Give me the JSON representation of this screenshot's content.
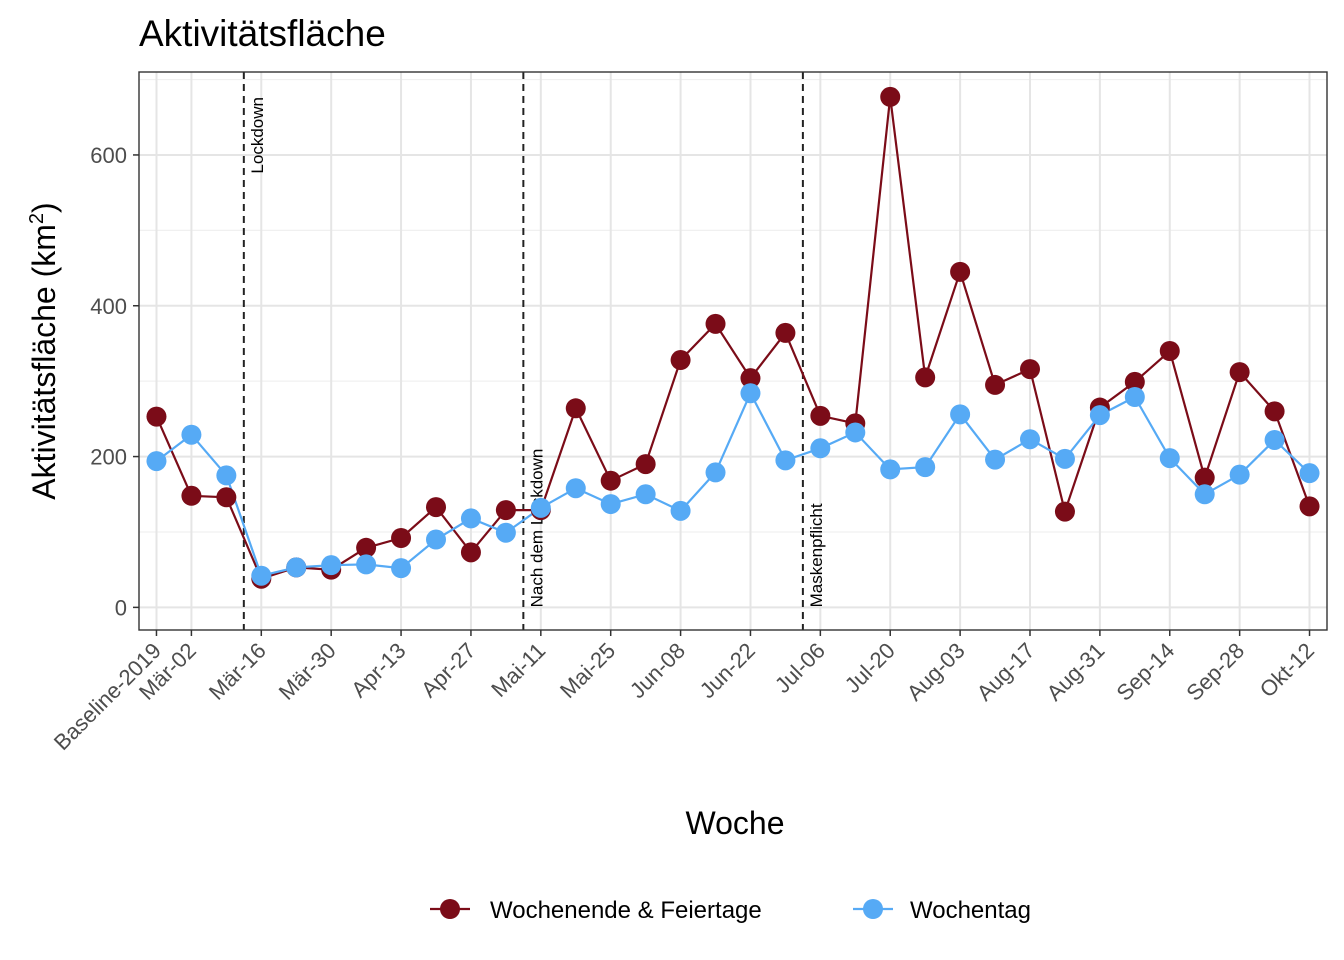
{
  "chart_data": {
    "type": "line",
    "title": "Aktivitätsfläche",
    "xlabel": "Woche",
    "ylabel": "Aktivitätsfläche (km",
    "ylabel_sup": "2",
    "ylabel_end": ")",
    "ylim": [
      -30,
      710
    ],
    "yticks": [
      0,
      200,
      400,
      600
    ],
    "grid": true,
    "legend_position": "bottom",
    "x_tick_labels": [
      "Baseline-2019",
      "Mär-02",
      "Mär-16",
      "Mär-30",
      "Apr-13",
      "Apr-27",
      "Mai-11",
      "Mai-25",
      "Jun-08",
      "Jun-22",
      "Jul-06",
      "Jul-20",
      "Aug-03",
      "Aug-17",
      "Aug-31",
      "Sep-14",
      "Sep-28",
      "Okt-12"
    ],
    "x_tick_positions": [
      0,
      1,
      3,
      5,
      7,
      9,
      11,
      13,
      15,
      17,
      19,
      21,
      23,
      25,
      27,
      29,
      31,
      33
    ],
    "x_range": [
      -0.5,
      33.5
    ],
    "events": [
      {
        "x": 2.5,
        "label": "Lockdown"
      },
      {
        "x": 10.5,
        "label": "Nach dem Lockdown"
      },
      {
        "x": 18.5,
        "label": "Maskenpflicht"
      }
    ],
    "series": [
      {
        "name": "Wochenende & Feiertage",
        "color": "#7b0c18",
        "x": [
          0,
          1,
          2,
          3,
          4,
          5,
          6,
          7,
          8,
          9,
          10,
          11,
          12,
          13,
          14,
          15,
          16,
          17,
          18,
          19,
          20,
          21,
          22,
          23,
          24,
          25,
          26,
          27,
          28,
          29,
          30,
          31,
          32,
          33
        ],
        "values": [
          253,
          148,
          146,
          38,
          53,
          50,
          79,
          92,
          133,
          73,
          129,
          129,
          264,
          168,
          190,
          328,
          376,
          304,
          364,
          254,
          244,
          677,
          305,
          445,
          295,
          316,
          127,
          265,
          299,
          340,
          172,
          312,
          260,
          134
        ]
      },
      {
        "name": "Wochentag",
        "color": "#56aaf5",
        "x": [
          0,
          1,
          2,
          3,
          4,
          5,
          6,
          7,
          8,
          9,
          10,
          11,
          12,
          13,
          14,
          15,
          16,
          17,
          18,
          19,
          20,
          21,
          22,
          23,
          24,
          25,
          26,
          27,
          28,
          29,
          30,
          31,
          32,
          33
        ],
        "values": [
          194,
          229,
          175,
          42,
          53,
          56,
          57,
          52,
          90,
          118,
          99,
          132,
          158,
          137,
          150,
          128,
          179,
          284,
          195,
          211,
          232,
          183,
          186,
          256,
          196,
          223,
          197,
          255,
          279,
          198,
          150,
          176,
          222,
          178
        ]
      }
    ]
  }
}
